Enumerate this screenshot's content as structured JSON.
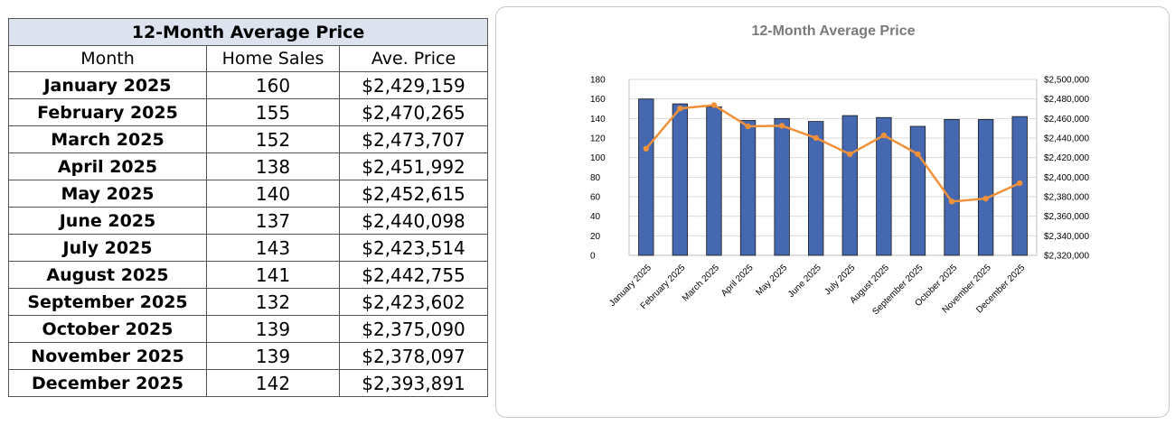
{
  "table": {
    "title": "12-Month Average Price",
    "headers": [
      "Month",
      "Home Sales",
      "Ave. Price"
    ],
    "rows": [
      {
        "month": "January 2025",
        "sales": "160",
        "price": "$2,429,159"
      },
      {
        "month": "February 2025",
        "sales": "155",
        "price": "$2,470,265"
      },
      {
        "month": "March 2025",
        "sales": "152",
        "price": "$2,473,707"
      },
      {
        "month": "April 2025",
        "sales": "138",
        "price": "$2,451,992"
      },
      {
        "month": "May 2025",
        "sales": "140",
        "price": "$2,452,615"
      },
      {
        "month": "June 2025",
        "sales": "137",
        "price": "$2,440,098"
      },
      {
        "month": "July 2025",
        "sales": "143",
        "price": "$2,423,514"
      },
      {
        "month": "August 2025",
        "sales": "141",
        "price": "$2,442,755"
      },
      {
        "month": "September 2025",
        "sales": "132",
        "price": "$2,423,602"
      },
      {
        "month": "October 2025",
        "sales": "139",
        "price": "$2,375,090"
      },
      {
        "month": "November 2025",
        "sales": "139",
        "price": "$2,378,097"
      },
      {
        "month": "December 2025",
        "sales": "142",
        "price": "$2,393,891"
      }
    ]
  },
  "colors": {
    "bar": "#4568b0",
    "bar_outline": "#1a1a1a",
    "line": "#f0913a",
    "title_fill": "#dce3ef",
    "chart_title": "#7a7a7a"
  },
  "chart_data": {
    "type": "bar",
    "title": "12-Month Average Price",
    "categories": [
      "January 2025",
      "February 2025",
      "March 2025",
      "April 2025",
      "May 2025",
      "June 2025",
      "July 2025",
      "August 2025",
      "September 2025",
      "October 2025",
      "November 2025",
      "December 2025"
    ],
    "series": [
      {
        "type": "bar",
        "axis": "left",
        "values": [
          160,
          155,
          152,
          138,
          140,
          137,
          143,
          141,
          132,
          139,
          139,
          142
        ]
      },
      {
        "type": "line",
        "axis": "right",
        "values": [
          2429159,
          2470265,
          2473707,
          2451992,
          2452615,
          2440098,
          2423514,
          2442755,
          2423602,
          2375090,
          2378097,
          2393891
        ]
      }
    ],
    "ylim_left": [
      0,
      180
    ],
    "yticks_left": [
      "0",
      "20",
      "40",
      "60",
      "80",
      "100",
      "120",
      "140",
      "160",
      "180"
    ],
    "ylim_right": [
      2320000,
      2500000
    ],
    "yticks_right": [
      "$2,320,000",
      "$2,340,000",
      "$2,360,000",
      "$2,380,000",
      "$2,400,000",
      "$2,420,000",
      "$2,440,000",
      "$2,460,000",
      "$2,480,000",
      "$2,500,000"
    ],
    "grid": true,
    "legend": "none"
  }
}
